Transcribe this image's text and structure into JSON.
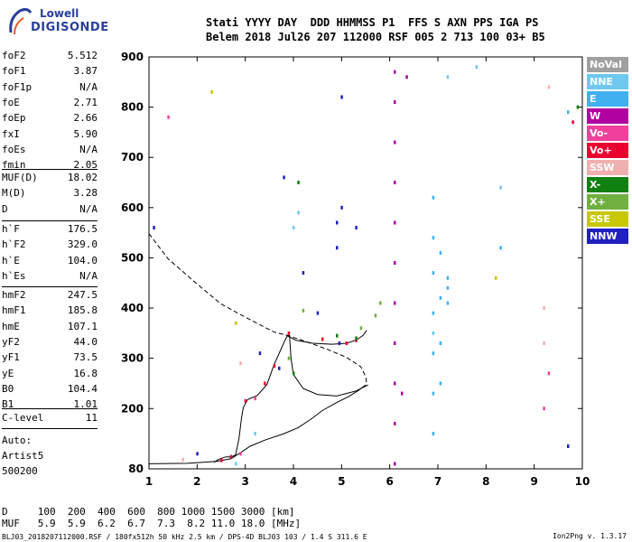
{
  "logo": {
    "brand": "Lowell",
    "product": "DIGISONDE"
  },
  "header": {
    "line1": "Stati YYYY DAY  DDD HHMMSS P1  FFS S AXN PPS IGA PS",
    "line2": "Belem 2018 Jul26 207 112000 RSF 005 2 713 100 03+ B5"
  },
  "params_group1": [
    {
      "name": "foF2",
      "value": "5.512"
    },
    {
      "name": "foF1",
      "value": "3.87"
    },
    {
      "name": "foF1p",
      "value": "N/A"
    },
    {
      "name": "foE",
      "value": "2.71"
    },
    {
      "name": "foEp",
      "value": "2.66"
    },
    {
      "name": "fxI",
      "value": "5.90"
    },
    {
      "name": "foEs",
      "value": "N/A"
    },
    {
      "name": "fmin",
      "value": "2.05"
    }
  ],
  "params_group2": [
    {
      "name": "MUF(D)",
      "value": "18.02"
    },
    {
      "name": "M(D)",
      "value": "3.28"
    },
    {
      "name": "D",
      "value": "N/A"
    }
  ],
  "params_group3": [
    {
      "name": "h`F",
      "value": "176.5"
    },
    {
      "name": "h`F2",
      "value": "329.0"
    },
    {
      "name": "h`E",
      "value": "104.0"
    },
    {
      "name": "h`Es",
      "value": "N/A"
    }
  ],
  "params_group4": [
    {
      "name": "hmF2",
      "value": "247.5"
    },
    {
      "name": "hmF1",
      "value": "185.8"
    },
    {
      "name": "hmE",
      "value": "107.1"
    },
    {
      "name": "yF2",
      "value": "44.0"
    },
    {
      "name": "yF1",
      "value": "73.5"
    },
    {
      "name": "yE",
      "value": "16.8"
    },
    {
      "name": "B0",
      "value": "104.4"
    },
    {
      "name": "B1",
      "value": "1.01"
    }
  ],
  "params_group5": [
    {
      "name": "C-level",
      "value": "11"
    }
  ],
  "auto": {
    "line1": "Auto:",
    "line2": "Artist5",
    "line3": "500200"
  },
  "legend": [
    {
      "label": "NoVal",
      "color": "#a0a0a0"
    },
    {
      "label": "NNE",
      "color": "#6ec8f0"
    },
    {
      "label": "E",
      "color": "#40b0f0"
    },
    {
      "label": "W",
      "color": "#b000a0"
    },
    {
      "label": "Vo-",
      "color": "#f0409c"
    },
    {
      "label": "Vo+",
      "color": "#e80030"
    },
    {
      "label": "SSW",
      "color": "#f0b0b0"
    },
    {
      "label": "X-",
      "color": "#108010"
    },
    {
      "label": "X+",
      "color": "#70b040"
    },
    {
      "label": "SSE",
      "color": "#c8c800"
    },
    {
      "label": "NNW",
      "color": "#2020c0"
    }
  ],
  "footer": {
    "d_row": "D     100  200  400  600  800 1000 1500 3000 [km]",
    "muf_row": "MUF   5.9  5.9  6.2  6.7  7.3  8.2 11.0 18.0 [MHz]",
    "fileline": "BLJ03_2018207112000.RSF / 180fx512h 50 kHz 2.5 km / DPS-4D BLJ03 103 / 1.4 S 311.6 E",
    "version": "Ion2Png v. 1.3.17"
  },
  "chart_data": {
    "type": "scatter",
    "title": "",
    "xlabel": "",
    "ylabel": "",
    "xlim": [
      1,
      10
    ],
    "ylim": [
      80,
      900
    ],
    "xticks": [
      1,
      2,
      3,
      4,
      5,
      6,
      7,
      8,
      9,
      10
    ],
    "yticks": [
      80,
      200,
      300,
      400,
      500,
      600,
      700,
      800,
      900
    ],
    "grid": false,
    "legend_position": "right",
    "profile_curve": {
      "style": "solid",
      "points": [
        [
          1.0,
          90
        ],
        [
          1.8,
          91
        ],
        [
          2.4,
          95
        ],
        [
          2.7,
          100
        ],
        [
          2.9,
          112
        ],
        [
          3.1,
          125
        ],
        [
          3.4,
          137
        ],
        [
          3.8,
          150
        ],
        [
          4.1,
          162
        ],
        [
          4.35,
          178
        ],
        [
          4.6,
          196
        ],
        [
          4.9,
          212
        ],
        [
          5.15,
          224
        ],
        [
          5.35,
          236
        ],
        [
          5.5,
          247
        ]
      ]
    },
    "trace_curve": {
      "style": "solid",
      "points": [
        [
          2.35,
          93
        ],
        [
          2.45,
          99
        ],
        [
          2.6,
          104
        ],
        [
          2.72,
          104
        ],
        [
          2.8,
          108
        ],
        [
          2.87,
          140
        ],
        [
          2.92,
          180
        ],
        [
          2.96,
          202
        ],
        [
          3.05,
          218
        ],
        [
          3.25,
          226
        ],
        [
          3.45,
          248
        ],
        [
          3.6,
          288
        ],
        [
          3.75,
          320
        ],
        [
          3.83,
          337
        ],
        [
          3.88,
          346
        ],
        [
          3.92,
          345
        ],
        [
          3.95,
          300
        ],
        [
          4.0,
          268
        ],
        [
          4.2,
          240
        ],
        [
          4.5,
          228
        ],
        [
          4.9,
          225
        ],
        [
          5.3,
          235
        ],
        [
          5.55,
          247
        ]
      ]
    },
    "f2_trace_curve": {
      "style": "solid",
      "points": [
        [
          3.85,
          346
        ],
        [
          4.05,
          336
        ],
        [
          4.4,
          330
        ],
        [
          4.8,
          328
        ],
        [
          5.1,
          330
        ],
        [
          5.3,
          336
        ],
        [
          5.45,
          346
        ],
        [
          5.52,
          356
        ]
      ]
    },
    "dashed_curve": {
      "style": "dashed",
      "points": [
        [
          1.0,
          548
        ],
        [
          1.4,
          498
        ],
        [
          2.0,
          448
        ],
        [
          2.5,
          408
        ],
        [
          3.0,
          382
        ],
        [
          3.6,
          352
        ],
        [
          3.9,
          345
        ],
        [
          4.3,
          332
        ],
        [
          4.7,
          318
        ],
        [
          5.1,
          302
        ],
        [
          5.4,
          283
        ],
        [
          5.5,
          264
        ],
        [
          5.52,
          250
        ]
      ]
    },
    "series": [
      {
        "name": "NNE",
        "points": [
          [
            2.8,
            90
          ],
          [
            3.2,
            150
          ],
          [
            4.0,
            560
          ],
          [
            4.1,
            590
          ],
          [
            6.9,
            350
          ],
          [
            7.2,
            860
          ],
          [
            7.8,
            880
          ],
          [
            8.3,
            640
          ]
        ]
      },
      {
        "name": "E",
        "points": [
          [
            6.9,
            150
          ],
          [
            6.9,
            230
          ],
          [
            6.9,
            310
          ],
          [
            6.9,
            390
          ],
          [
            6.9,
            470
          ],
          [
            6.9,
            540
          ],
          [
            6.9,
            620
          ],
          [
            7.05,
            250
          ],
          [
            7.05,
            330
          ],
          [
            7.05,
            420
          ],
          [
            7.05,
            510
          ],
          [
            7.2,
            410
          ],
          [
            7.2,
            440
          ],
          [
            7.2,
            460
          ],
          [
            9.7,
            790
          ],
          [
            8.3,
            520
          ]
        ]
      },
      {
        "name": "W",
        "points": [
          [
            6.1,
            90
          ],
          [
            6.1,
            170
          ],
          [
            6.1,
            250
          ],
          [
            6.1,
            330
          ],
          [
            6.1,
            410
          ],
          [
            6.1,
            490
          ],
          [
            6.1,
            570
          ],
          [
            6.1,
            650
          ],
          [
            6.1,
            730
          ],
          [
            6.1,
            810
          ],
          [
            6.1,
            870
          ],
          [
            6.35,
            860
          ],
          [
            6.25,
            230
          ]
        ]
      },
      {
        "name": "Vo-",
        "points": [
          [
            1.4,
            780
          ],
          [
            2.9,
            110
          ],
          [
            3.2,
            220
          ],
          [
            9.2,
            200
          ],
          [
            9.3,
            270
          ]
        ]
      },
      {
        "name": "Vo+",
        "points": [
          [
            2.5,
            97
          ],
          [
            2.7,
            104
          ],
          [
            3.0,
            215
          ],
          [
            3.4,
            250
          ],
          [
            3.6,
            285
          ],
          [
            3.9,
            350
          ],
          [
            4.6,
            338
          ],
          [
            5.1,
            330
          ],
          [
            5.3,
            336
          ],
          [
            9.8,
            770
          ]
        ]
      },
      {
        "name": "SSW",
        "points": [
          [
            1.7,
            98
          ],
          [
            2.9,
            290
          ],
          [
            9.2,
            330
          ],
          [
            9.2,
            400
          ],
          [
            9.3,
            840
          ]
        ]
      },
      {
        "name": "X-",
        "points": [
          [
            4.0,
            270
          ],
          [
            4.1,
            650
          ],
          [
            4.9,
            345
          ],
          [
            5.3,
            340
          ],
          [
            9.9,
            800
          ]
        ]
      },
      {
        "name": "X+",
        "points": [
          [
            3.9,
            300
          ],
          [
            5.4,
            360
          ],
          [
            5.7,
            385
          ],
          [
            5.8,
            410
          ],
          [
            4.2,
            395
          ]
        ]
      },
      {
        "name": "SSE",
        "points": [
          [
            2.3,
            830
          ],
          [
            2.8,
            370
          ],
          [
            8.2,
            460
          ]
        ]
      },
      {
        "name": "NNW",
        "points": [
          [
            2.0,
            110
          ],
          [
            3.3,
            310
          ],
          [
            3.7,
            280
          ],
          [
            4.2,
            470
          ],
          [
            4.5,
            390
          ],
          [
            4.9,
            570
          ],
          [
            4.9,
            520
          ],
          [
            4.95,
            330
          ],
          [
            5.0,
            600
          ],
          [
            5.0,
            820
          ],
          [
            5.3,
            560
          ],
          [
            9.7,
            125
          ],
          [
            1.1,
            560
          ],
          [
            3.8,
            660
          ]
        ]
      }
    ]
  }
}
